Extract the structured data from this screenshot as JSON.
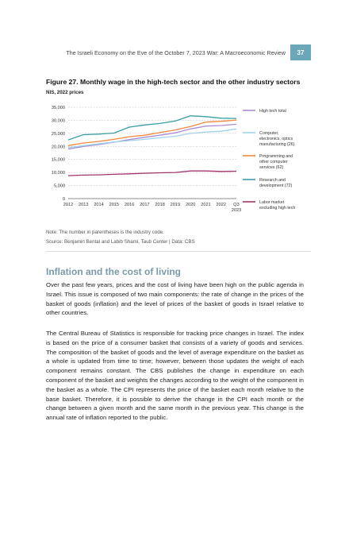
{
  "header": {
    "running_title": "The Israeli Economy on the Eve of the October 7, 2023 War: A Macroeconomic Review",
    "page_number": "37"
  },
  "figure": {
    "title": "Figure 27. Monthly wage in the high-tech sector and the other industry sectors",
    "subtitle": "NIS, 2022 prices"
  },
  "chart_data": {
    "type": "line",
    "title": "Figure 27. Monthly wage in the high-tech sector and the other industry sectors",
    "ylabel": "NIS, 2022 prices",
    "xlabel": "",
    "categories": [
      "2012",
      "2013",
      "2014",
      "2015",
      "2016",
      "2017",
      "2018",
      "2019",
      "2020",
      "2021",
      "2022",
      "Q3 2023"
    ],
    "x_tick_labels": [
      "2012",
      "2013",
      "2014",
      "2015",
      "2016",
      "2017",
      "2018",
      "2019",
      "2020",
      "2021",
      "2022"
    ],
    "x_last_tick": [
      "Q3",
      "2023"
    ],
    "ylim": [
      0,
      35000
    ],
    "yticks": [
      0,
      5000,
      10000,
      15000,
      20000,
      25000,
      30000,
      35000
    ],
    "ytick_labels": [
      "0",
      "5,000",
      "10,000",
      "15,000",
      "20,000",
      "25,000",
      "30,000",
      "35,000"
    ],
    "grid": true,
    "legend_position": "right",
    "series": [
      {
        "name": "High tech total",
        "legend_lines": [
          "High tech total"
        ],
        "color": "#a98ccf",
        "values": [
          19000,
          20000,
          20700,
          21600,
          22600,
          23500,
          24300,
          25200,
          26700,
          27800,
          28000,
          28500
        ]
      },
      {
        "name": "Computer, electronics, optics manufacturing (26)",
        "legend_lines": [
          "Computer,",
          "electronics, optics",
          "manufacturing (26)"
        ],
        "color": "#9fd3ea",
        "values": [
          19500,
          20300,
          21000,
          21700,
          22200,
          22700,
          23300,
          23900,
          25000,
          25500,
          25800,
          26700
        ]
      },
      {
        "name": "Programming and other computer services (62)",
        "legend_lines": [
          "Programming and",
          "other computer",
          "services (62)"
        ],
        "color": "#f0883c",
        "values": [
          20300,
          21300,
          21900,
          22700,
          23700,
          24300,
          25300,
          26300,
          27600,
          29300,
          29600,
          30100
        ]
      },
      {
        "name": "Research and development (72)",
        "legend_lines": [
          "Research and",
          "development (72)"
        ],
        "color": "#3a9ea3",
        "values": [
          22500,
          24500,
          24700,
          25100,
          27400,
          28200,
          28800,
          29700,
          31700,
          31400,
          30800,
          30700
        ]
      },
      {
        "name": "Labor market excluding high tech",
        "legend_lines": [
          "Labor market",
          "excluding high tech"
        ],
        "color": "#a3346e",
        "values": [
          8800,
          9000,
          9100,
          9300,
          9500,
          9700,
          9900,
          10000,
          10600,
          10600,
          10400,
          10500
        ]
      }
    ]
  },
  "note": "Note: The number in parentheses is the industry code.",
  "source": "Source: Benjamin Bental and Labib Shami, Taub Center | Data: CBS",
  "section": {
    "title": "Inflation and the cost of living",
    "paragraphs": [
      "Over the past few years, prices and the cost of living have been high on the public agenda in Israel. This issue is composed of two main components: the rate of change in the prices of the basket of goods (inflation) and the level of prices of the basket of goods in Israel relative to other countries.",
      "The Central Bureau of Statistics is responsible for tracking price changes in Israel. The index is based on the price of a consumer basket that consists of a variety of goods and services. The composition of the basket of goods and the level of average expenditure on the basket as a whole is updated from time to time; however, between those updates the weight of each component remains constant. The CBS publishes the change in expenditure on each component of the basket and weights the changes according to the weight of the component in the basket as a whole. The CPI represents the price of the basket each month relative to the base basket. Therefore, it is possible to derive the change in the CPI each month or the change between a given month and the same month in the previous year. This change is the annual rate of inflation reported to the public."
    ]
  }
}
